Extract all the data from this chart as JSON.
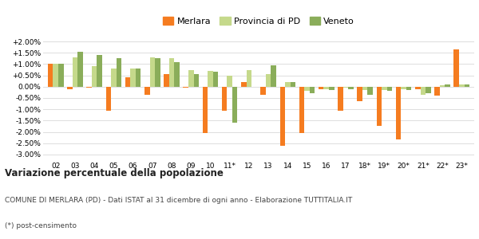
{
  "years": [
    "02",
    "03",
    "04",
    "05",
    "06",
    "07",
    "08",
    "09",
    "10",
    "11*",
    "12",
    "13",
    "14",
    "15",
    "16",
    "17",
    "18*",
    "19*",
    "20*",
    "21*",
    "22*",
    "23*"
  ],
  "merlara": [
    1.0,
    -0.1,
    -0.05,
    -1.05,
    0.4,
    -0.35,
    0.55,
    -0.05,
    -2.05,
    -1.05,
    0.2,
    -0.35,
    -2.6,
    -2.05,
    -0.1,
    -1.05,
    -0.65,
    -1.75,
    -2.35,
    -0.1,
    -0.4,
    1.65
  ],
  "provincia_pd": [
    1.0,
    1.3,
    0.9,
    0.8,
    0.8,
    1.3,
    1.25,
    0.75,
    0.7,
    0.5,
    0.75,
    0.55,
    0.2,
    -0.2,
    -0.1,
    -0.05,
    -0.15,
    -0.15,
    -0.1,
    -0.35,
    0.05,
    0.1
  ],
  "veneto": [
    1.0,
    1.55,
    1.4,
    1.25,
    0.8,
    1.25,
    1.1,
    0.55,
    0.65,
    -1.6,
    0.0,
    0.95,
    0.2,
    -0.3,
    -0.15,
    -0.1,
    -0.35,
    -0.2,
    -0.15,
    -0.3,
    0.1,
    0.1
  ],
  "merlara_color": "#f57c20",
  "provincia_color": "#c5d98b",
  "veneto_color": "#8aad5a",
  "title": "Variazione percentuale della popolazione",
  "subtitle": "COMUNE DI MERLARA (PD) - Dati ISTAT al 31 dicembre di ogni anno - Elaborazione TUTTITALIA.IT",
  "footnote": "(*) post-censimento",
  "ylim": [
    -3.25,
    2.25
  ],
  "yticks": [
    -3.0,
    -2.5,
    -2.0,
    -1.5,
    -1.0,
    -0.5,
    0.0,
    0.5,
    1.0,
    1.5,
    2.0
  ],
  "ytick_labels": [
    "-3.00%",
    "-2.50%",
    "-2.00%",
    "-1.50%",
    "-1.00%",
    "-0.50%",
    "0.00%",
    "+0.50%",
    "+1.00%",
    "+1.50%",
    "+2.00%"
  ],
  "bar_width": 0.27,
  "background_color": "#ffffff",
  "grid_color": "#dddddd"
}
